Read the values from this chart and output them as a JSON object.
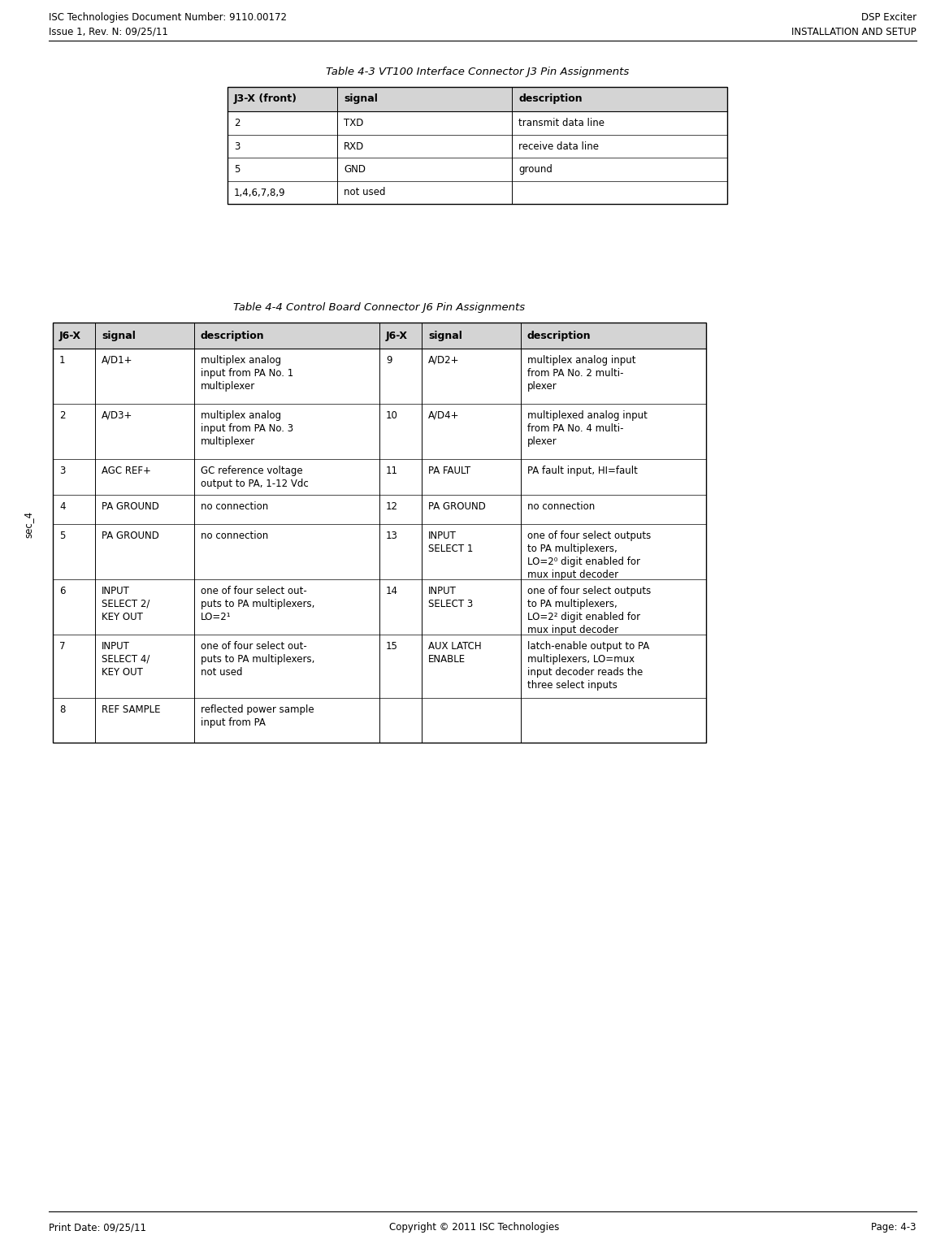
{
  "page_width": 11.68,
  "page_height": 15.36,
  "dpi": 100,
  "background_color": "#ffffff",
  "header_left_line1": "ISC Technologies Document Number: 9110.00172",
  "header_left_line2": "Issue 1, Rev. N: 09/25/11",
  "header_right_line1": "DSP Exciter",
  "header_right_line2": "INSTALLATION AND SETUP",
  "footer_left": "Print Date: 09/25/11",
  "footer_center": "Copyright © 2011 ISC Technologies",
  "footer_right": "Page: 4-3",
  "side_label": "sec_4",
  "table1_title": "Table 4-3 VT100 Interface Connector J3 Pin Assignments",
  "table1_headers": [
    "J3-X (front)",
    "signal",
    "description"
  ],
  "table1_rows": [
    [
      "2",
      "TXD",
      "transmit data line"
    ],
    [
      "3",
      "RXD",
      "receive data line"
    ],
    [
      "5",
      "GND",
      "ground"
    ],
    [
      "1,4,6,7,8,9",
      "not used",
      ""
    ]
  ],
  "table2_title": "Table 4-4 Control Board Connector J6 Pin Assignments",
  "table2_headers": [
    "J6-X",
    "signal",
    "description",
    "J6-X",
    "signal",
    "description"
  ],
  "table2_rows": [
    [
      "1",
      "A/D1+",
      "multiplex analog\ninput from PA No. 1\nmultiplexer",
      "9",
      "A/D2+",
      "multiplex analog input\nfrom PA No. 2 multi-\nplexer"
    ],
    [
      "2",
      "A/D3+",
      "multiplex analog\ninput from PA No. 3\nmultiplexer",
      "10",
      "A/D4+",
      "multiplexed analog input\nfrom PA No. 4 multi-\nplexer"
    ],
    [
      "3",
      "AGC REF+",
      "GC reference voltage\noutput to PA, 1-12 Vdc",
      "11",
      "PA FAULT",
      "PA fault input, HI=fault"
    ],
    [
      "4",
      "PA GROUND",
      "no connection",
      "12",
      "PA GROUND",
      "no connection"
    ],
    [
      "5",
      "PA GROUND",
      "no connection",
      "13",
      "INPUT\nSELECT 1",
      "one of four select outputs\nto PA multiplexers,\nLO=2⁰ digit enabled for\nmux input decoder"
    ],
    [
      "6",
      "INPUT\nSELECT 2/\nKEY OUT",
      "one of four select out-\nputs to PA multiplexers,\nLO=2¹",
      "14",
      "INPUT\nSELECT 3",
      "one of four select outputs\nto PA multiplexers,\nLO=2² digit enabled for\nmux input decoder"
    ],
    [
      "7",
      "INPUT\nSELECT 4/\nKEY OUT",
      "one of four select out-\nputs to PA multiplexers,\nnot used",
      "15",
      "AUX LATCH\nENABLE",
      "latch-enable output to PA\nmultiplexers, LO=mux\ninput decoder reads the\nthree select inputs"
    ],
    [
      "8",
      "REF SAMPLE",
      "reflected power sample\ninput from PA",
      "",
      "",
      ""
    ]
  ],
  "header_font_size": 8.5,
  "footer_font_size": 8.5,
  "table_title_font_size": 9.5,
  "table_header_font_size": 9,
  "table_body_font_size": 8.5,
  "header_bg": "#d4d4d4"
}
